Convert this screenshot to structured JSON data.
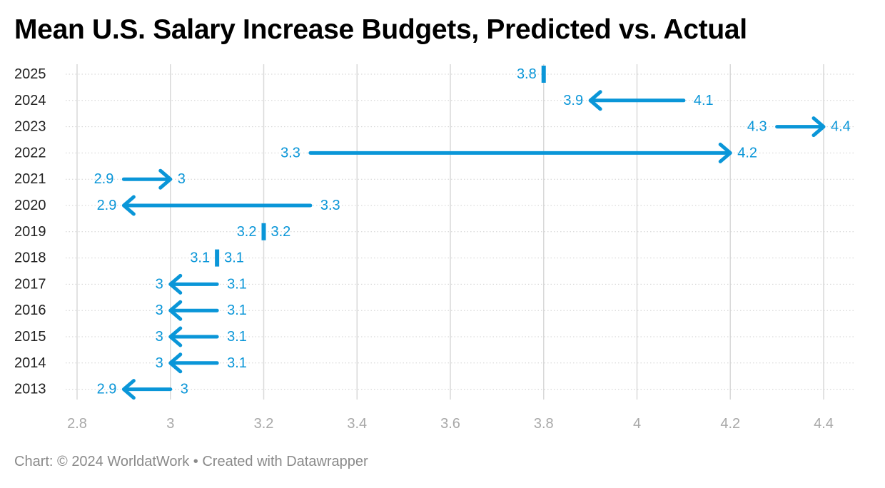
{
  "title": "Mean U.S. Salary Increase Budgets, Predicted vs. Actual",
  "footer": {
    "prefix": "Chart: © 2024 WorldatWork",
    "separator": "•",
    "suffix": "Created with Datawrapper"
  },
  "colors": {
    "accent": "#0a96d8",
    "grid": "#d9d9d9",
    "axis_text": "#a8a8a8",
    "label_text": "#222222"
  },
  "chart_data": {
    "type": "arrow",
    "title": "Mean U.S. Salary Increase Budgets, Predicted vs. Actual",
    "xlim": [
      2.8,
      4.4
    ],
    "xticks": [
      "2.8",
      "3",
      "3.2",
      "3.4",
      "3.6",
      "3.8",
      "4",
      "4.2",
      "4.4"
    ],
    "series": [
      {
        "name": "Predicted"
      },
      {
        "name": "Actual"
      }
    ],
    "rows": [
      {
        "year": "2025",
        "predicted": 3.8,
        "actual": null,
        "predicted_label": "3.8",
        "actual_label": ""
      },
      {
        "year": "2024",
        "predicted": 4.1,
        "actual": 3.9,
        "predicted_label": "4.1",
        "actual_label": "3.9"
      },
      {
        "year": "2023",
        "predicted": 4.3,
        "actual": 4.4,
        "predicted_label": "4.3",
        "actual_label": "4.4"
      },
      {
        "year": "2022",
        "predicted": 3.3,
        "actual": 4.2,
        "predicted_label": "3.3",
        "actual_label": "4.2"
      },
      {
        "year": "2021",
        "predicted": 2.9,
        "actual": 3.0,
        "predicted_label": "2.9",
        "actual_label": "3"
      },
      {
        "year": "2020",
        "predicted": 3.3,
        "actual": 2.9,
        "predicted_label": "3.3",
        "actual_label": "2.9"
      },
      {
        "year": "2019",
        "predicted": 3.2,
        "actual": 3.2,
        "predicted_label": "3.2",
        "actual_label": "3.2"
      },
      {
        "year": "2018",
        "predicted": 3.1,
        "actual": 3.1,
        "predicted_label": "3.1",
        "actual_label": "3.1"
      },
      {
        "year": "2017",
        "predicted": 3.1,
        "actual": 3.0,
        "predicted_label": "3.1",
        "actual_label": "3"
      },
      {
        "year": "2016",
        "predicted": 3.1,
        "actual": 3.0,
        "predicted_label": "3.1",
        "actual_label": "3"
      },
      {
        "year": "2015",
        "predicted": 3.1,
        "actual": 3.0,
        "predicted_label": "3.1",
        "actual_label": "3"
      },
      {
        "year": "2014",
        "predicted": 3.1,
        "actual": 3.0,
        "predicted_label": "3.1",
        "actual_label": "3"
      },
      {
        "year": "2013",
        "predicted": 3.0,
        "actual": 2.9,
        "predicted_label": "3",
        "actual_label": "2.9"
      }
    ]
  }
}
